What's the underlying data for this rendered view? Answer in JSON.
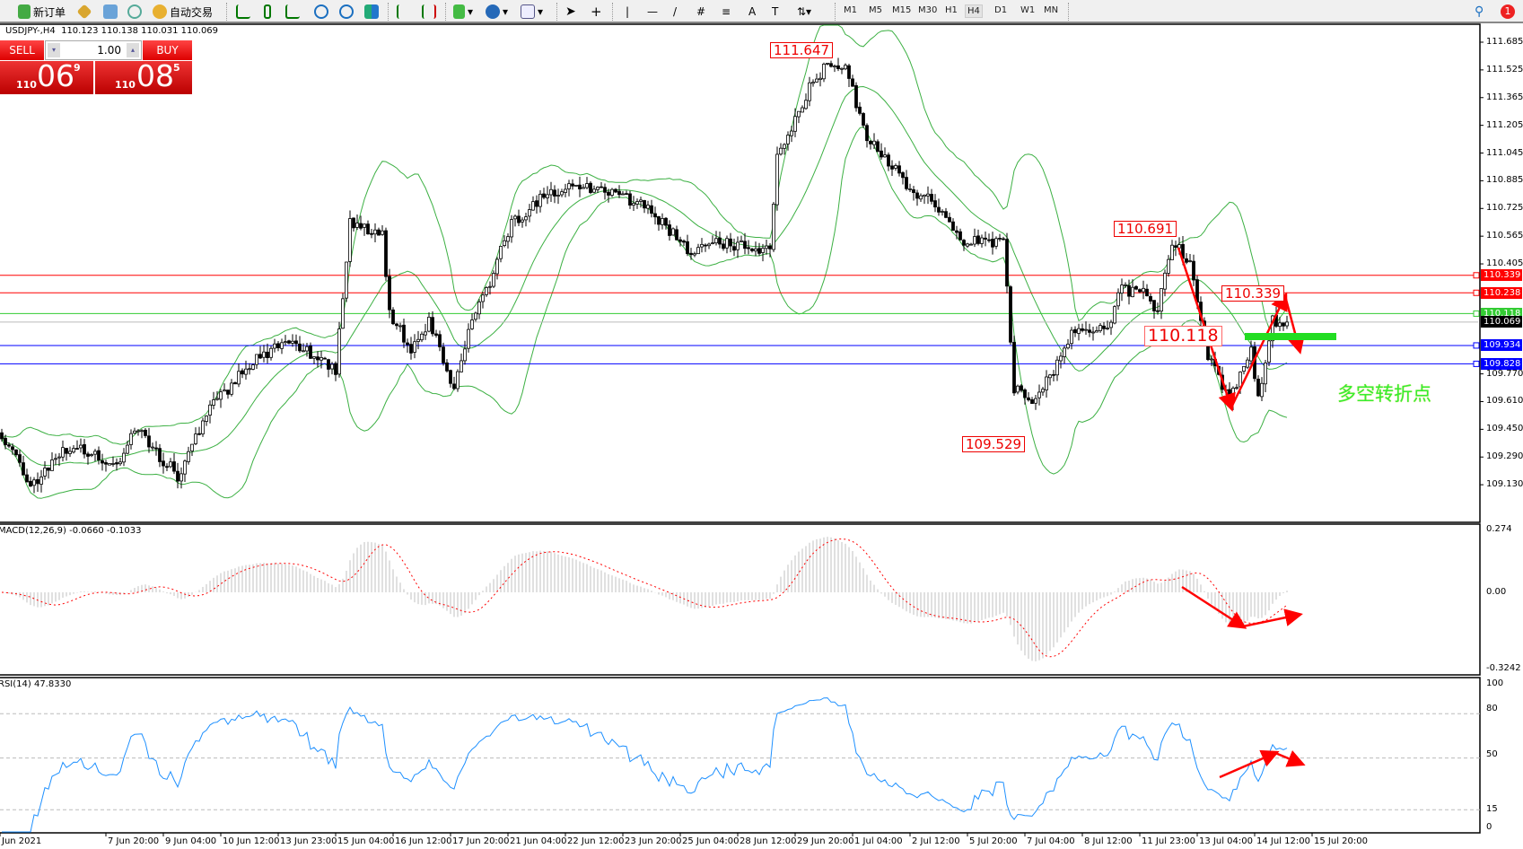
{
  "toolbar": {
    "new_order": "新订单",
    "auto_trading": "自动交易",
    "timeframes": [
      "M1",
      "M5",
      "M15",
      "M30",
      "H1",
      "H4",
      "D1",
      "W1",
      "MN"
    ],
    "active_timeframe": "H4",
    "notification_count": "1",
    "icons": [
      "new-order-icon",
      "gold-icon",
      "terminal-icon",
      "signal-icon",
      "auto-trading-icon",
      "bar-chart-icon",
      "candlestick-icon",
      "line-chart-icon",
      "zoom-in-icon",
      "zoom-out-icon",
      "tile-icon",
      "autoscroll-icon",
      "chart-shift-icon",
      "indicators-icon",
      "period-icon",
      "templates-icon",
      "cursor-icon",
      "crosshair-icon",
      "vertical-line-icon",
      "horizontal-line-icon",
      "trendline-icon",
      "fibo-channel-icon",
      "fibo-icon",
      "text-icon",
      "text-label-icon",
      "arrows-icon",
      "search-icon",
      "notification-icon"
    ],
    "text_tool": "A"
  },
  "chart": {
    "symbol": "USDJPY-,H4",
    "ohlc": "110.123 110.138 110.031 110.069"
  },
  "trade_panel": {
    "sell_label": "SELL",
    "buy_label": "BUY",
    "lots": "1.00",
    "sell_price": {
      "big": "110",
      "main": "06",
      "sup": "9"
    },
    "buy_price": {
      "big": "110",
      "main": "08",
      "sup": "5"
    }
  },
  "annotations": {
    "high_label": "111.647",
    "swing_high": "110.691",
    "recent_high": "110.339",
    "pivot": "110.118",
    "low_label": "109.529",
    "turning_point_text": "多空转折点"
  },
  "chart_data": {
    "type": "candlestick",
    "timeframe": "H4",
    "price_ticks": [
      "111.685",
      "111.525",
      "111.365",
      "111.205",
      "111.045",
      "110.885",
      "110.725",
      "110.565",
      "110.405",
      "109.770",
      "109.610",
      "109.450",
      "109.290",
      "109.130"
    ],
    "time_labels": [
      "Jun 2021",
      "7 Jun 20:00",
      "9 Jun 04:00",
      "10 Jun 12:00",
      "13 Jun 23:00",
      "15 Jun 04:00",
      "16 Jun 12:00",
      "17 Jun 20:00",
      "21 Jun 04:00",
      "22 Jun 12:00",
      "23 Jun 20:00",
      "25 Jun 04:00",
      "28 Jun 12:00",
      "29 Jun 20:00",
      "1 Jul 04:00",
      "2 Jul 12:00",
      "5 Jul 20:00",
      "7 Jul 04:00",
      "8 Jul 12:00",
      "11 Jul 23:00",
      "13 Jul 04:00",
      "14 Jul 12:00",
      "15 Jul 20:00"
    ],
    "close_path_bar_price": [
      [
        0,
        109.43
      ],
      [
        8,
        109.13
      ],
      [
        19,
        109.35
      ],
      [
        32,
        109.24
      ],
      [
        37,
        109.46
      ],
      [
        49,
        109.18
      ],
      [
        58,
        109.57
      ],
      [
        70,
        109.85
      ],
      [
        81,
        109.96
      ],
      [
        93,
        109.8
      ],
      [
        97,
        110.64
      ],
      [
        106,
        110.58
      ],
      [
        108,
        110.13
      ],
      [
        114,
        109.91
      ],
      [
        119,
        110.08
      ],
      [
        126,
        109.68
      ],
      [
        130,
        110.02
      ],
      [
        135,
        110.25
      ],
      [
        142,
        110.64
      ],
      [
        152,
        110.81
      ],
      [
        162,
        110.86
      ],
      [
        170,
        110.81
      ],
      [
        179,
        110.75
      ],
      [
        187,
        110.58
      ],
      [
        192,
        110.47
      ],
      [
        200,
        110.53
      ],
      [
        214,
        110.47
      ],
      [
        216,
        111.03
      ],
      [
        225,
        111.42
      ],
      [
        229,
        111.53
      ],
      [
        235,
        111.53
      ],
      [
        241,
        111.14
      ],
      [
        246,
        111.03
      ],
      [
        252,
        110.86
      ],
      [
        260,
        110.75
      ],
      [
        268,
        110.53
      ],
      [
        279,
        110.53
      ],
      [
        282,
        109.68
      ],
      [
        287,
        109.63
      ],
      [
        292,
        109.74
      ],
      [
        298,
        110.02
      ],
      [
        308,
        110.02
      ],
      [
        311,
        110.25
      ],
      [
        318,
        110.25
      ],
      [
        322,
        110.13
      ],
      [
        326,
        110.53
      ],
      [
        331,
        110.41
      ],
      [
        336,
        109.88
      ],
      [
        342,
        109.63
      ],
      [
        348,
        109.91
      ],
      [
        350,
        109.63
      ],
      [
        354,
        110.08
      ],
      [
        358,
        110.069
      ]
    ],
    "overlay": "Bollinger Bands",
    "horizontal_lines": [
      {
        "price": "110.339",
        "color": "#ff0000"
      },
      {
        "price": "110.238",
        "color": "#ff0000"
      },
      {
        "price": "110.118",
        "color": "#33cc33"
      },
      {
        "price": "110.069",
        "color": "#000000",
        "kind": "bid"
      },
      {
        "price": "109.934",
        "color": "#0000ff"
      },
      {
        "price": "109.828",
        "color": "#0000ff"
      }
    ],
    "macd": {
      "label": "MACD(12,26,9) -0.0660 -0.1033",
      "axis": [
        "0.274",
        "0.00",
        "-0.3242"
      ],
      "range": [
        -0.3242,
        0.274
      ]
    },
    "rsi": {
      "label": "RSI(14) 47.8330",
      "axis": [
        "100",
        "80",
        "50",
        "15",
        "0"
      ],
      "levels": [
        80,
        50,
        15
      ]
    },
    "colors": {
      "bands": "#3cb043",
      "macd_hist": "#c0c0c0",
      "signal": "#ff0000",
      "rsi": "#1e90ff",
      "annotation": "#ff0000",
      "turning_text": "#33ee33"
    }
  }
}
